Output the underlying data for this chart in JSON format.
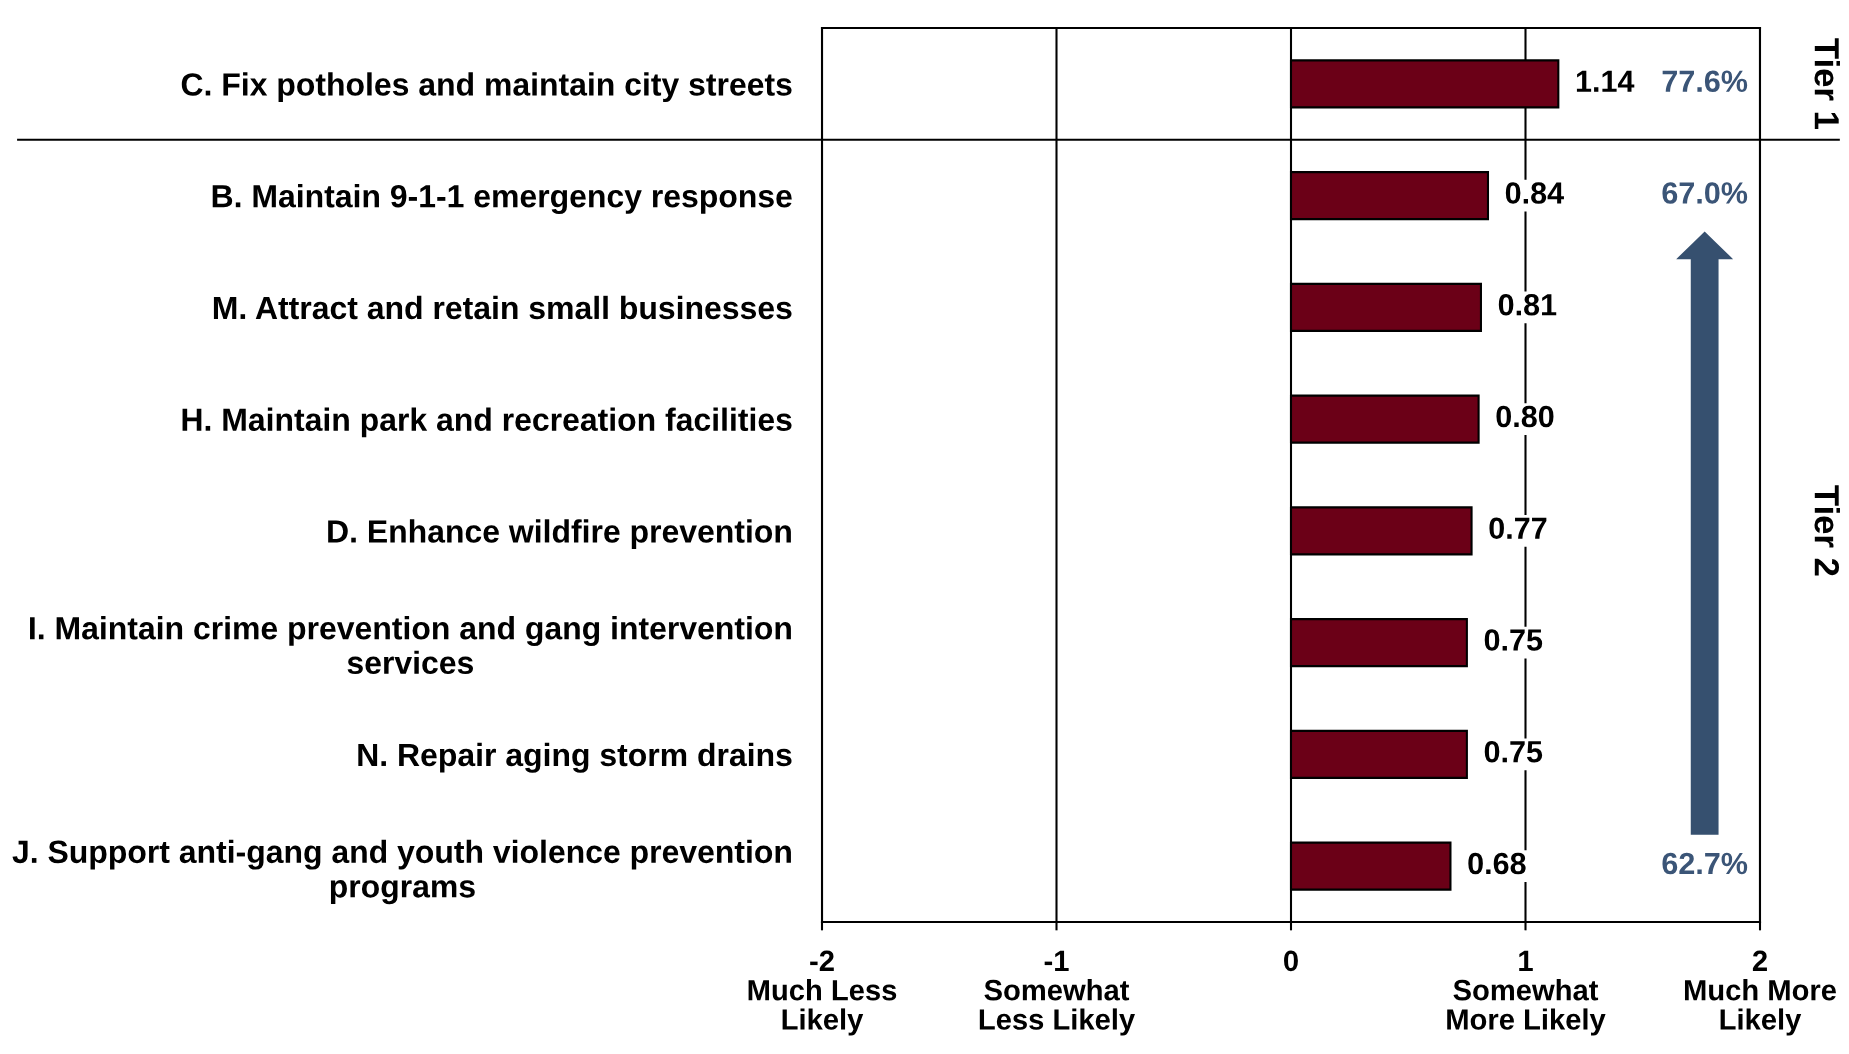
{
  "chart_data": {
    "type": "bar",
    "orientation": "horizontal",
    "categories": [
      "C. Fix potholes and maintain city streets",
      "B. Maintain 9-1-1 emergency response",
      "M. Attract and retain small businesses",
      "H. Maintain park and recreation facilities",
      "D. Enhance wildfire prevention",
      "I. Maintain crime prevention and gang intervention\nservices",
      "N. Repair aging storm drains",
      "J. Support anti-gang and youth violence prevention\nprograms"
    ],
    "values": [
      1.14,
      0.84,
      0.81,
      0.8,
      0.77,
      0.75,
      0.75,
      0.68
    ],
    "value_labels": [
      "1.14",
      "0.84",
      "0.81",
      "0.80",
      "0.77",
      "0.75",
      "0.75",
      "0.68"
    ],
    "color": "#6b0017",
    "xlim": [
      -2,
      2
    ],
    "xticks": [
      {
        "value": -2,
        "label": "-2\nMuch Less\nLikely"
      },
      {
        "value": -1,
        "label": "-1\nSomewhat\nLess Likely"
      },
      0,
      {
        "value": 1,
        "label": "1\nSomewhat\nMore Likely"
      },
      {
        "value": 2,
        "label": "2\nMuch More\nLikely"
      }
    ],
    "grid": "x",
    "annotations": [
      "77.6%",
      "67.0%",
      "62.7%",
      "Tier 1",
      "Tier 2"
    ]
  }
}
